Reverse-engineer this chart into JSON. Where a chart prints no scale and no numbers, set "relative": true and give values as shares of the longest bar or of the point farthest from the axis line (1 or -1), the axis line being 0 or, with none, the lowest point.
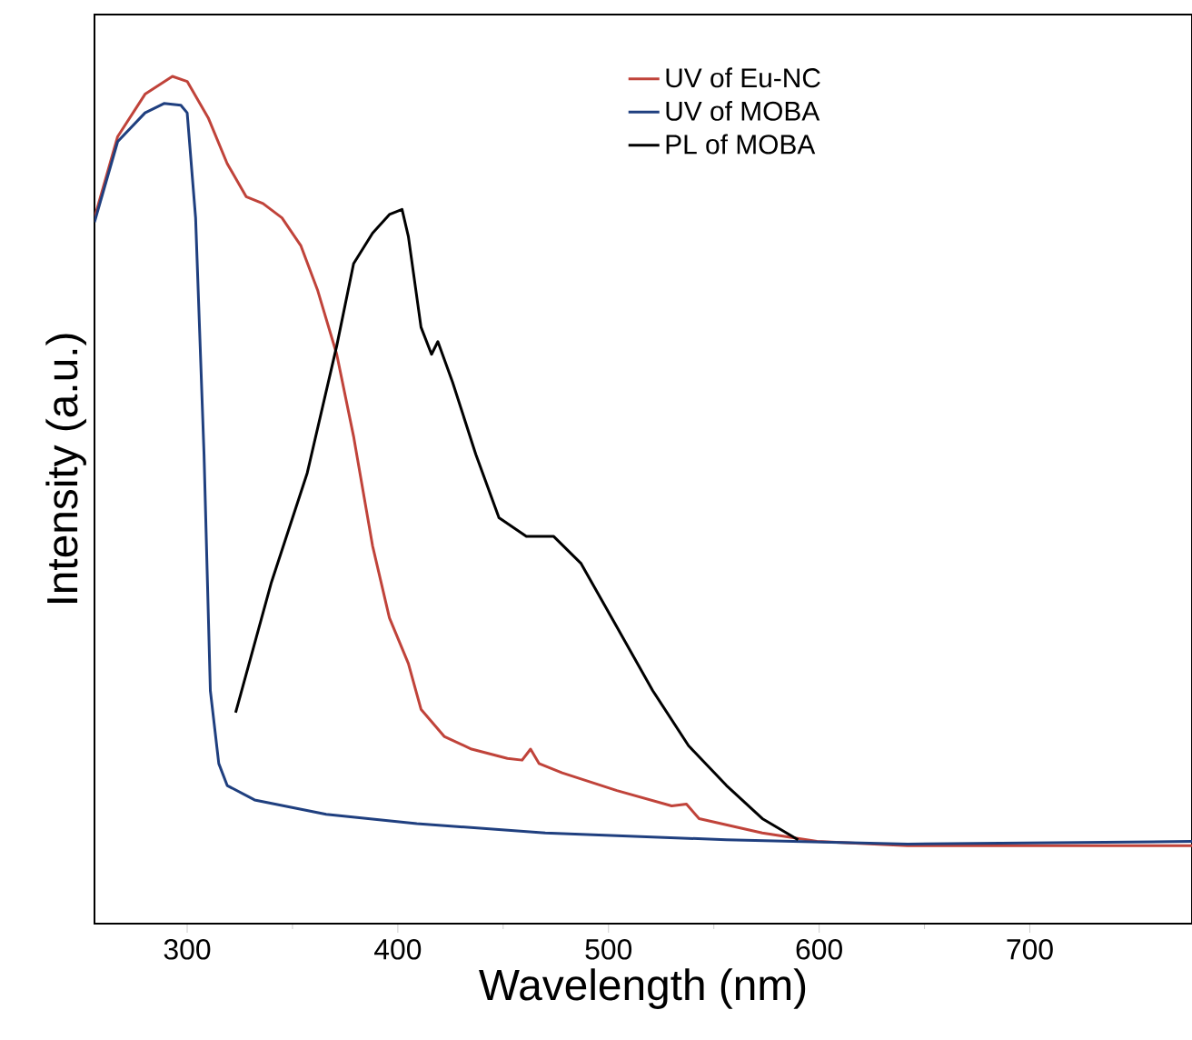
{
  "chart_data": {
    "type": "line",
    "xlabel": "Wavelength (nm)",
    "ylabel": "Intensity (a.u.)",
    "relative": true,
    "xlim": [
      256,
      777
    ],
    "xticks": [
      300,
      400,
      500,
      600,
      700
    ],
    "legend": "top right",
    "marker": "none",
    "line_style": "solid",
    "grid": false,
    "series": [
      {
        "name": "UV of Eu-NC",
        "color": "#c0433a",
        "x": [
          256,
          267,
          280,
          293,
          300,
          310,
          319,
          328,
          336,
          345,
          354,
          362,
          371,
          379,
          388,
          396,
          405,
          411,
          422,
          435,
          452,
          459,
          463,
          467,
          478,
          504,
          530,
          537,
          543,
          573,
          599,
          642,
          777
        ],
        "values": [
          0.833,
          0.929,
          0.979,
          1.0,
          0.994,
          0.951,
          0.897,
          0.858,
          0.85,
          0.833,
          0.8,
          0.747,
          0.672,
          0.575,
          0.446,
          0.361,
          0.307,
          0.253,
          0.221,
          0.206,
          0.195,
          0.193,
          0.206,
          0.189,
          0.178,
          0.157,
          0.139,
          0.141,
          0.124,
          0.107,
          0.097,
          0.092,
          0.092
        ]
      },
      {
        "name": "UV of MOBA",
        "color": "#1f3f7f",
        "x": [
          256,
          267,
          280,
          289,
          297,
          300,
          304,
          308,
          311,
          315,
          319,
          332,
          366,
          409,
          470,
          556,
          642,
          777
        ],
        "values": [
          0.828,
          0.923,
          0.957,
          0.968,
          0.966,
          0.957,
          0.833,
          0.554,
          0.275,
          0.189,
          0.163,
          0.146,
          0.129,
          0.118,
          0.107,
          0.099,
          0.094,
          0.097
        ]
      },
      {
        "name": "PL of MOBA",
        "color": "#000000",
        "x": [
          323,
          340,
          357,
          371,
          379,
          388,
          396,
          402,
          405,
          411,
          416,
          419,
          426,
          437,
          448,
          461,
          474,
          487,
          504,
          521,
          538,
          556,
          573,
          590
        ],
        "values": [
          0.249,
          0.403,
          0.532,
          0.682,
          0.779,
          0.815,
          0.837,
          0.843,
          0.811,
          0.704,
          0.672,
          0.687,
          0.639,
          0.554,
          0.479,
          0.457,
          0.457,
          0.425,
          0.35,
          0.275,
          0.21,
          0.163,
          0.124,
          0.099
        ]
      }
    ]
  }
}
